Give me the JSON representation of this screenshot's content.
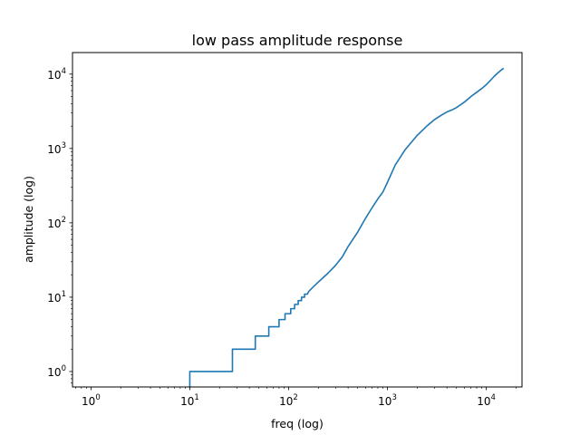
{
  "chart_data": {
    "type": "line",
    "title": "low pass amplitude response",
    "xlabel": "freq (log)",
    "ylabel": "amplitude (log)",
    "xscale": "log",
    "yscale": "log",
    "xlim": [
      0.65,
      23000
    ],
    "ylim": [
      0.62,
      19500
    ],
    "grid": false,
    "xticks": [
      {
        "base": "10",
        "exp": "0",
        "value": 1
      },
      {
        "base": "10",
        "exp": "1",
        "value": 10
      },
      {
        "base": "10",
        "exp": "2",
        "value": 100
      },
      {
        "base": "10",
        "exp": "3",
        "value": 1000
      },
      {
        "base": "10",
        "exp": "4",
        "value": 10000
      }
    ],
    "yticks": [
      {
        "base": "10",
        "exp": "0",
        "value": 1
      },
      {
        "base": "10",
        "exp": "1",
        "value": 10
      },
      {
        "base": "10",
        "exp": "2",
        "value": 100
      },
      {
        "base": "10",
        "exp": "3",
        "value": 1000
      },
      {
        "base": "10",
        "exp": "4",
        "value": 10000
      }
    ],
    "series": [
      {
        "color": "#1f77b4",
        "points": [
          [
            10,
            0.3
          ],
          [
            10,
            1
          ],
          [
            27,
            1
          ],
          [
            27,
            2
          ],
          [
            46,
            2
          ],
          [
            46,
            3
          ],
          [
            63,
            3
          ],
          [
            63,
            4
          ],
          [
            80,
            4
          ],
          [
            80,
            5
          ],
          [
            92,
            5
          ],
          [
            92,
            6
          ],
          [
            105,
            6
          ],
          [
            105,
            7
          ],
          [
            115,
            7
          ],
          [
            115,
            8
          ],
          [
            125,
            8
          ],
          [
            125,
            9
          ],
          [
            135,
            9
          ],
          [
            135,
            10
          ],
          [
            145,
            10
          ],
          [
            145,
            11
          ],
          [
            155,
            11
          ],
          [
            160,
            12
          ],
          [
            180,
            14
          ],
          [
            200,
            16
          ],
          [
            250,
            21
          ],
          [
            300,
            27
          ],
          [
            350,
            35
          ],
          [
            400,
            48
          ],
          [
            500,
            75
          ],
          [
            600,
            115
          ],
          [
            700,
            160
          ],
          [
            800,
            210
          ],
          [
            900,
            260
          ],
          [
            1000,
            350
          ],
          [
            1200,
            600
          ],
          [
            1500,
            950
          ],
          [
            2000,
            1500
          ],
          [
            2500,
            2000
          ],
          [
            3000,
            2450
          ],
          [
            3500,
            2800
          ],
          [
            4000,
            3100
          ],
          [
            4500,
            3300
          ],
          [
            5000,
            3550
          ],
          [
            6000,
            4200
          ],
          [
            7000,
            5000
          ],
          [
            8000,
            5700
          ],
          [
            9000,
            6400
          ],
          [
            10000,
            7200
          ],
          [
            11000,
            8200
          ],
          [
            12000,
            9300
          ],
          [
            13000,
            10300
          ],
          [
            14000,
            11200
          ],
          [
            15000,
            12000
          ]
        ]
      }
    ]
  }
}
